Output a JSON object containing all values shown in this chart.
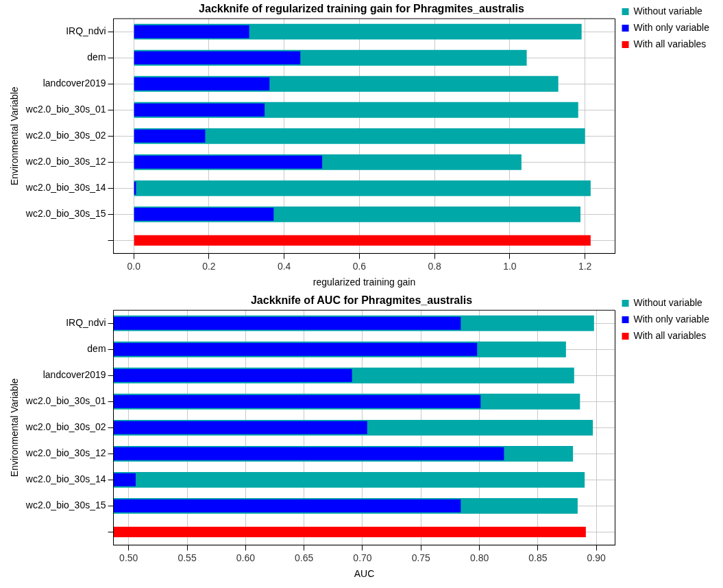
{
  "chart_data": [
    {
      "type": "bar",
      "orientation": "horizontal",
      "title": "Jackknife of regularized training gain for Phragmites_australis",
      "xlabel": "regularized training gain",
      "ylabel": "Environmental Variable",
      "categories": [
        "IRQ_ndvi",
        "dem",
        "landcover2019",
        "wc2.0_bio_30s_01",
        "wc2.0_bio_30s_02",
        "wc2.0_bio_30s_12",
        "wc2.0_bio_30s_14",
        "wc2.0_bio_30s_15",
        null
      ],
      "series": [
        {
          "name": "Without variable",
          "color": "#00a8a8",
          "values": [
            1.191,
            1.045,
            1.129,
            1.182,
            1.2,
            1.031,
            1.215,
            1.188,
            null
          ]
        },
        {
          "name": "With only variable",
          "color": "#0000ff",
          "values": [
            0.307,
            0.443,
            0.361,
            0.348,
            0.19,
            0.501,
            0.006,
            0.372,
            null
          ]
        },
        {
          "name": "With all variables",
          "color": "#ff0000",
          "values": [
            null,
            null,
            null,
            null,
            null,
            null,
            null,
            null,
            1.215
          ]
        }
      ],
      "xlim": [
        -0.054,
        1.28
      ],
      "xticks": [
        {
          "value": 0,
          "label": "0.0"
        },
        {
          "value": 0.2,
          "label": "0.2"
        },
        {
          "value": 0.4,
          "label": "0.4"
        },
        {
          "value": 0.6,
          "label": "0.6"
        },
        {
          "value": 0.8,
          "label": "0.8"
        },
        {
          "value": 1,
          "label": "1.0"
        },
        {
          "value": 1.2,
          "label": "1.2"
        }
      ],
      "grid": true,
      "legend": "right"
    },
    {
      "type": "bar",
      "orientation": "horizontal",
      "title": "Jackknife of AUC for Phragmites_australis",
      "xlabel": "AUC",
      "ylabel": "Environmental Variable",
      "categories": [
        "IRQ_ndvi",
        "dem",
        "landcover2019",
        "wc2.0_bio_30s_01",
        "wc2.0_bio_30s_02",
        "wc2.0_bio_30s_12",
        "wc2.0_bio_30s_14",
        "wc2.0_bio_30s_15",
        null
      ],
      "series": [
        {
          "name": "Without variable",
          "color": "#00a8a8",
          "values": [
            0.898,
            0.874,
            0.881,
            0.886,
            0.897,
            0.88,
            0.89,
            0.884,
            null
          ]
        },
        {
          "name": "With only variable",
          "color": "#0000ff",
          "values": [
            0.784,
            0.798,
            0.691,
            0.801,
            0.704,
            0.821,
            0.506,
            0.784,
            null
          ]
        },
        {
          "name": "With all variables",
          "color": "#ff0000",
          "values": [
            null,
            null,
            null,
            null,
            null,
            null,
            null,
            null,
            0.891
          ]
        }
      ],
      "xlim": [
        0.487,
        0.916
      ],
      "xticks": [
        {
          "value": 0.5,
          "label": "0.50"
        },
        {
          "value": 0.55,
          "label": "0.55"
        },
        {
          "value": 0.6,
          "label": "0.60"
        },
        {
          "value": 0.65,
          "label": "0.65"
        },
        {
          "value": 0.7,
          "label": "0.70"
        },
        {
          "value": 0.75,
          "label": "0.75"
        },
        {
          "value": 0.8,
          "label": "0.80"
        },
        {
          "value": 0.85,
          "label": "0.85"
        },
        {
          "value": 0.9,
          "label": "0.90"
        }
      ],
      "grid": true,
      "legend": "right"
    }
  ]
}
